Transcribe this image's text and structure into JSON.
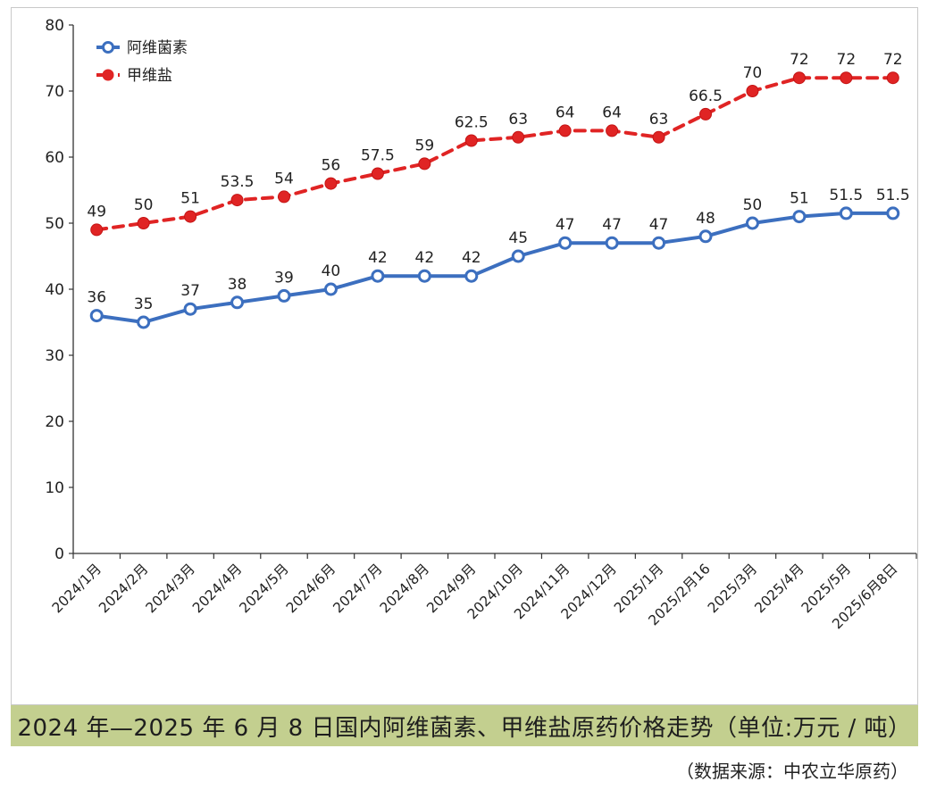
{
  "chart_data": {
    "type": "line",
    "title": "2024 年—2025 年 6 月 8 日国内阿维菌素、甲维盐原药价格走势（单位:万元 / 吨）",
    "source": "（数据来源：中农立华原药）",
    "xlabel": "",
    "ylabel": "",
    "ylim": [
      0,
      80
    ],
    "yticks": [
      0,
      10,
      20,
      30,
      40,
      50,
      60,
      70,
      80
    ],
    "grid": false,
    "legend_position": "top-left",
    "categories": [
      "2024/1月",
      "2024/2月",
      "2024/3月",
      "2024/4月",
      "2024/5月",
      "2024/6月",
      "2024/7月",
      "2024/8月",
      "2024/9月",
      "2024/10月",
      "2024/11月",
      "2024/12月",
      "2025/1月",
      "2025/2月16",
      "2025/3月",
      "2025/4月",
      "2025/5月",
      "2025/6月8日"
    ],
    "series": [
      {
        "name": "阿维菌素",
        "color": "#3c6fbf",
        "style": "solid",
        "values": [
          36,
          35,
          37,
          38,
          39,
          40,
          42,
          42,
          42,
          45,
          47,
          47,
          47,
          48,
          50,
          51,
          51.5,
          51.5
        ],
        "labels": [
          "36",
          "35",
          "37",
          "38",
          "39",
          "40",
          "42",
          "42",
          "42",
          "45",
          "47",
          "47",
          "47",
          "48",
          "50",
          "51",
          "51.5",
          "51.5"
        ]
      },
      {
        "name": "甲维盐",
        "color": "#e02424",
        "style": "dashed",
        "values": [
          49,
          50,
          51,
          53.5,
          54,
          56,
          57.5,
          59,
          62.5,
          63,
          64,
          64,
          63,
          66.5,
          70,
          72,
          72,
          72
        ],
        "labels": [
          "49",
          "50",
          "51",
          "53.5",
          "54",
          "56",
          "57.5",
          "59",
          "62.5",
          "63",
          "64",
          "64",
          "63",
          "66.5",
          "70",
          "72",
          "72",
          "72"
        ]
      }
    ]
  }
}
